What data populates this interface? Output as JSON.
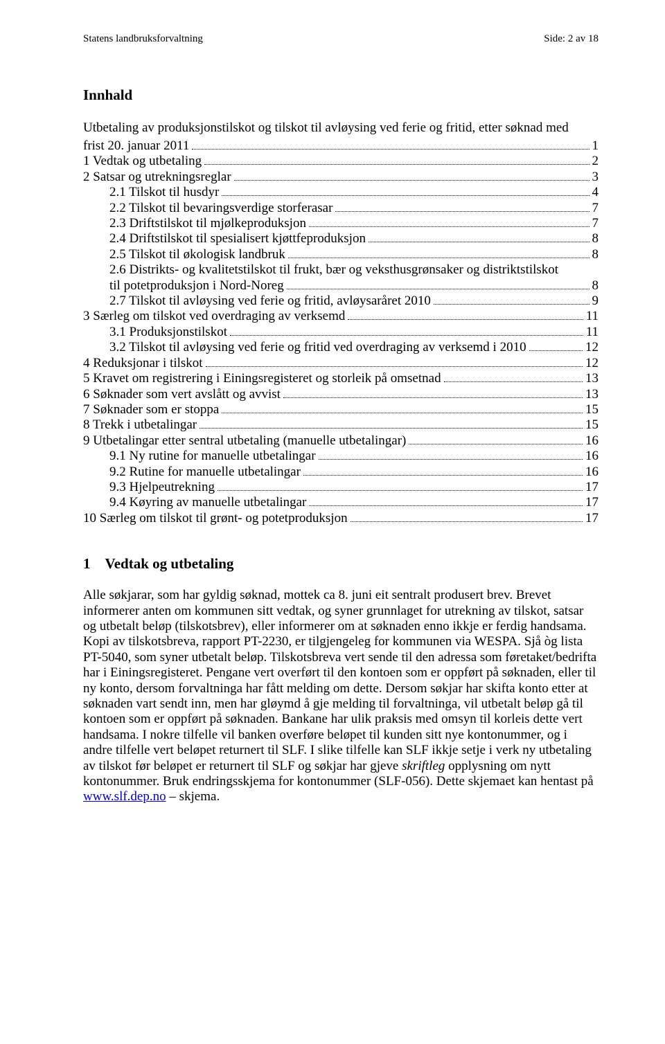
{
  "header": {
    "left": "Statens landbruksforvaltning",
    "right": "Side: 2 av 18"
  },
  "title": "Innhald",
  "subtitle_lines": [
    "Utbetaling av produksjonstilskot og tilskot til avløysing ved ferie og fritid, etter søknad med"
  ],
  "toc": [
    {
      "label": "frist 20. januar 2011",
      "page": "1",
      "indent": 0
    },
    {
      "label": "1  Vedtak og utbetaling",
      "page": "2",
      "indent": 0
    },
    {
      "label": "2  Satsar og utrekningsreglar",
      "page": "3",
      "indent": 0
    },
    {
      "label": "2.1  Tilskot til husdyr",
      "page": "4",
      "indent": 1
    },
    {
      "label": "2.2  Tilskot til bevaringsverdige storferasar",
      "page": "7",
      "indent": 1
    },
    {
      "label": "2.3  Driftstilskot til mjølkeproduksjon",
      "page": "7",
      "indent": 1
    },
    {
      "label": "2.4  Driftstilskot til spesialisert kjøttfeproduksjon",
      "page": "8",
      "indent": 1
    },
    {
      "label": "2.5  Tilskot til økologisk landbruk",
      "page": "8",
      "indent": 1
    },
    {
      "label": "2.6  Distrikts- og kvalitetstilskot til frukt, bær og veksthusgrønsaker og distriktstilskot",
      "page": "",
      "indent": 1,
      "wrap": true
    },
    {
      "label": "til potetproduksjon i Nord-Noreg",
      "page": "8",
      "indent": 1
    },
    {
      "label": "2.7  Tilskot til avløysing ved ferie og fritid, avløysaråret 2010",
      "page": "9",
      "indent": 1
    },
    {
      "label": "3  Særleg om tilskot ved overdraging av verksemd",
      "page": "11",
      "indent": 0
    },
    {
      "label": "3.1  Produksjonstilskot",
      "page": "11",
      "indent": 1
    },
    {
      "label": "3.2  Tilskot til avløysing ved ferie og fritid ved overdraging av verksemd i 2010",
      "page": "12",
      "indent": 1
    },
    {
      "label": "4  Reduksjonar i tilskot",
      "page": "12",
      "indent": 0
    },
    {
      "label": "5  Kravet om registrering i Einingsregisteret og storleik på omsetnad",
      "page": "13",
      "indent": 0
    },
    {
      "label": "6  Søknader som vert avslått og avvist",
      "page": "13",
      "indent": 0
    },
    {
      "label": "7  Søknader som er stoppa",
      "page": "15",
      "indent": 0
    },
    {
      "label": "8  Trekk i utbetalingar",
      "page": "15",
      "indent": 0
    },
    {
      "label": "9  Utbetalingar etter sentral utbetaling (manuelle utbetalingar)",
      "page": "16",
      "indent": 0
    },
    {
      "label": "9.1  Ny rutine for manuelle utbetalingar",
      "page": "16",
      "indent": 1
    },
    {
      "label": "9.2  Rutine for manuelle utbetalingar",
      "page": "16",
      "indent": 1
    },
    {
      "label": "9.3  Hjelpeutrekning",
      "page": "17",
      "indent": 1
    },
    {
      "label": "9.4  Køyring av manuelle utbetalingar",
      "page": "17",
      "indent": 1
    },
    {
      "label": "10  Særleg om tilskot til grønt- og potetproduksjon",
      "page": "17",
      "indent": 0
    }
  ],
  "section": {
    "number": "1",
    "title": "Vedtak og utbetaling"
  },
  "body": {
    "p1a": "Alle søkjarar, som har gyldig søknad, mottek ca 8. juni eit sentralt produsert brev. Brevet informerer anten om kommunen sitt vedtak, og syner grunnlaget for utrekning av tilskot, satsar og utbetalt beløp (tilskotsbrev), eller informerer om at søknaden enno ikkje er ferdig handsama. Kopi av tilskotsbreva, rapport PT-2230, er tilgjengeleg for kommunen via WESPA. Sjå òg lista PT-5040, som syner utbetalt beløp. Tilskotsbreva vert sende til den adressa som føretaket/bedrifta har i Einingsregisteret. Pengane vert overført til den kontoen som er oppført på søknaden, eller til ny konto, dersom forvaltninga har fått melding om dette. Dersom søkjar har skifta konto etter at søknaden vart sendt inn, men har gløymd å gje melding til forvaltninga, vil utbetalt beløp gå til kontoen som er oppført på søknaden. Bankane har ulik praksis med omsyn til korleis dette vert handsama. I nokre tilfelle vil banken overføre beløpet til kunden sitt nye kontonummer, og i andre tilfelle vert beløpet returnert til SLF. I slike tilfelle kan SLF ikkje setje i verk ny utbetaling av tilskot før beløpet er returnert til SLF og søkjar har gjeve ",
    "italic": "skriftleg",
    "p1b": " opplysning om nytt kontonummer. Bruk endringsskjema for kontonummer (SLF-056). Dette skjemaet kan hentast på ",
    "link_text": "www.slf.dep.no",
    "p1c": " – skjema."
  },
  "colors": {
    "text": "#000000",
    "link": "#0000cc",
    "background": "#ffffff"
  },
  "typography": {
    "body_fontsize_pt": 14,
    "title_fontsize_pt": 16,
    "font_family": "Times New Roman"
  }
}
